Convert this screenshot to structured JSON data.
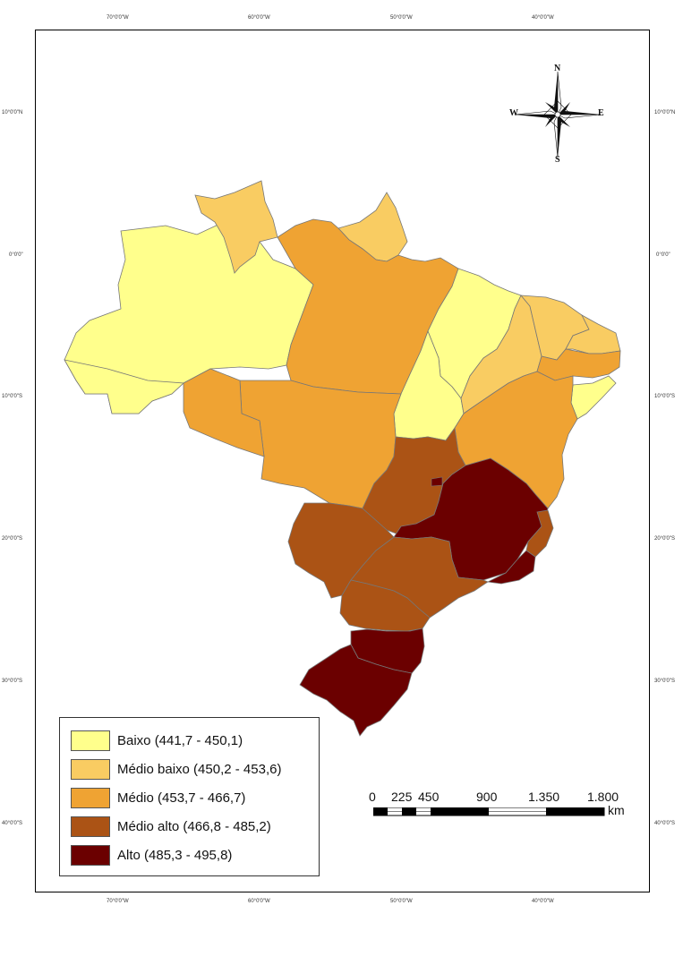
{
  "graticule": {
    "lon_top": [
      "70°0'0\"W",
      "60°0'0\"W",
      "50°0'0\"W",
      "40°0'0\"W"
    ],
    "lon_bottom": [
      "70°0'0\"W",
      "60°0'0\"W",
      "50°0'0\"W",
      "40°0'0\"W"
    ],
    "lat_left": [
      "10°0'0\"N",
      "0°0'0\"",
      "10°0'0\"S",
      "20°0'0\"S",
      "30°0'0\"S",
      "40°0'0\"S"
    ],
    "lat_right": [
      "10°0'0\"N",
      "0°0'0\"",
      "10°0'0\"S",
      "20°0'0\"S",
      "30°0'0\"S",
      "40°0'0\"S"
    ]
  },
  "compass": {
    "n": "N",
    "s": "S",
    "e": "E",
    "w": "W"
  },
  "legend": {
    "items": [
      {
        "label": "Baixo (441,7 - 450,1)",
        "color": "#ffff8c"
      },
      {
        "label": "Médio baixo (450,2 - 453,6)",
        "color": "#f9cc62"
      },
      {
        "label": "Médio (453,7 - 466,7)",
        "color": "#efa333"
      },
      {
        "label": "Médio alto (466,8 - 485,2)",
        "color": "#ab5315"
      },
      {
        "label": "Alto (485,3 - 495,8)",
        "color": "#6b0000"
      }
    ]
  },
  "scale_bar": {
    "labels": [
      "0",
      "225",
      "450",
      "900",
      "1.350",
      "1.800"
    ],
    "unit": "km"
  }
}
